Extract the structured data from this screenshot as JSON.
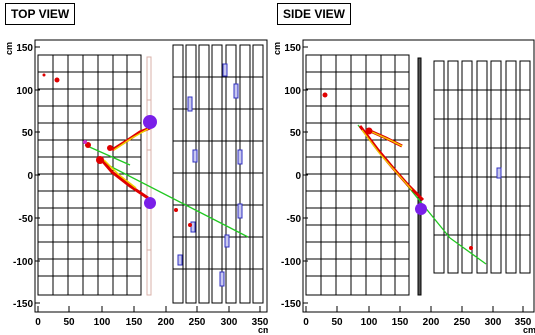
{
  "panels": [
    {
      "title": "TOP VIEW",
      "unit_y": "cm",
      "unit_x": "cm",
      "yticks": [
        "150",
        "100",
        "50",
        "0",
        "-50",
        "-100",
        "-150"
      ],
      "xticks": [
        "0",
        "50",
        "100",
        "150",
        "200",
        "250",
        "300",
        "350"
      ]
    },
    {
      "title": "SIDE VIEW",
      "unit_y": "cm",
      "unit_x": "cm",
      "yticks": [
        "150",
        "100",
        "50",
        "0",
        "-50",
        "-100",
        "-150"
      ],
      "xticks": [
        "0",
        "50",
        "100",
        "150",
        "200",
        "250",
        "300",
        "350"
      ]
    }
  ],
  "colors": {
    "track": "#22c822",
    "hit_red": "#e00000",
    "hit_yellow": "#f0d000",
    "vertex": "#7a1fe8",
    "block_blue": "#3030c0",
    "frame": "#000000"
  }
}
